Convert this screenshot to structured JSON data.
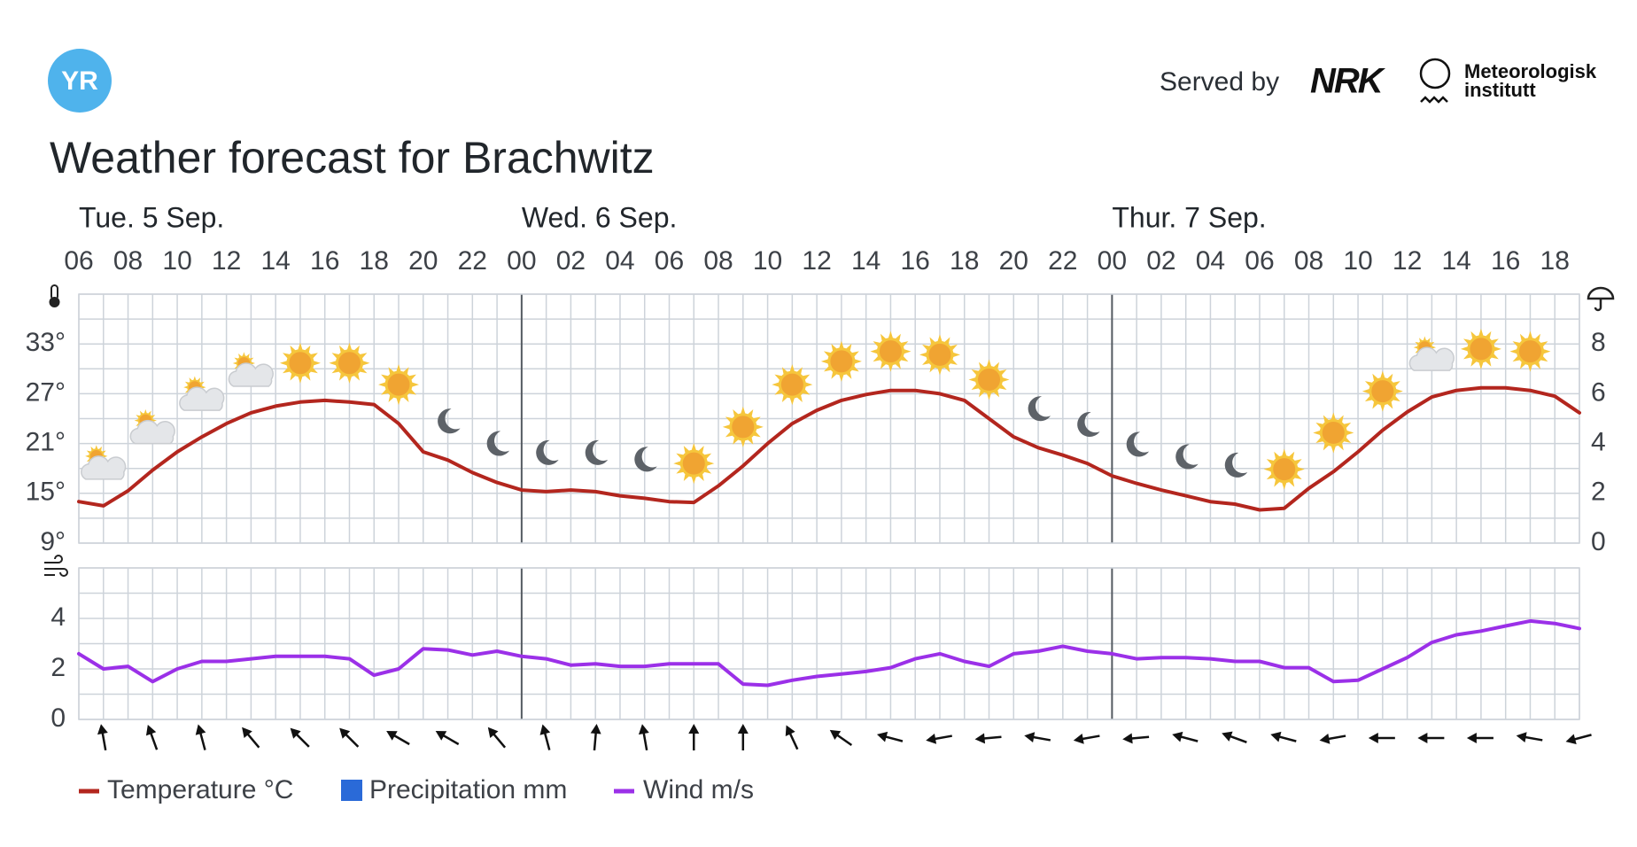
{
  "header": {
    "logo": "YR",
    "served_by": "Served by",
    "nrk": "NRK",
    "met_line1": "Meteorologisk",
    "met_line2": "institutt",
    "title": "Weather forecast for Brachwitz"
  },
  "chart_data": [
    {
      "type": "line",
      "x": [
        0,
        1,
        2,
        3,
        4,
        5,
        6,
        7,
        8,
        9,
        10,
        11,
        12,
        13,
        14,
        15,
        16,
        17,
        18,
        19,
        20,
        21,
        22,
        23,
        24,
        25,
        26,
        27,
        28,
        29,
        30,
        31,
        32,
        33,
        34,
        35,
        36,
        37,
        38,
        39,
        40,
        41,
        42,
        43,
        44,
        45,
        46,
        47,
        48,
        49,
        50,
        51,
        52,
        53,
        54,
        55,
        56,
        57,
        58,
        59,
        60,
        61
      ],
      "xlim": [
        0,
        61
      ],
      "xticks": [
        {
          "value": 0,
          "label": "06"
        },
        {
          "value": 2,
          "label": "08"
        },
        {
          "value": 4,
          "label": "10"
        },
        {
          "value": 6,
          "label": "12"
        },
        {
          "value": 8,
          "label": "14"
        },
        {
          "value": 10,
          "label": "16"
        },
        {
          "value": 12,
          "label": "18"
        },
        {
          "value": 14,
          "label": "20"
        },
        {
          "value": 16,
          "label": "22"
        },
        {
          "value": 18,
          "label": "00"
        },
        {
          "value": 20,
          "label": "02"
        },
        {
          "value": 22,
          "label": "04"
        },
        {
          "value": 24,
          "label": "06"
        },
        {
          "value": 26,
          "label": "08"
        },
        {
          "value": 28,
          "label": "10"
        },
        {
          "value": 30,
          "label": "12"
        },
        {
          "value": 32,
          "label": "14"
        },
        {
          "value": 34,
          "label": "16"
        },
        {
          "value": 36,
          "label": "18"
        },
        {
          "value": 38,
          "label": "20"
        },
        {
          "value": 40,
          "label": "22"
        },
        {
          "value": 42,
          "label": "00"
        },
        {
          "value": 44,
          "label": "02"
        },
        {
          "value": 46,
          "label": "04"
        },
        {
          "value": 48,
          "label": "06"
        },
        {
          "value": 50,
          "label": "08"
        },
        {
          "value": 52,
          "label": "10"
        },
        {
          "value": 54,
          "label": "12"
        },
        {
          "value": 56,
          "label": "14"
        },
        {
          "value": 58,
          "label": "16"
        },
        {
          "value": 60,
          "label": "18"
        }
      ],
      "days": [
        {
          "value": 0,
          "label": "Tue. 5 Sep."
        },
        {
          "value": 18,
          "label": "Wed. 6 Sep."
        },
        {
          "value": 42,
          "label": "Thur. 7 Sep."
        }
      ],
      "ylim": [
        9,
        39
      ],
      "yticks": [
        {
          "value": 9,
          "label": "9°"
        },
        {
          "value": 15,
          "label": "15°"
        },
        {
          "value": 21,
          "label": "21°"
        },
        {
          "value": 27,
          "label": "27°"
        },
        {
          "value": 33,
          "label": "33°"
        }
      ],
      "yminor": [
        12,
        18,
        24,
        30,
        36,
        39
      ],
      "y2lim": [
        0,
        10
      ],
      "y2ticks": [
        0,
        2,
        4,
        6,
        8
      ],
      "grid": true,
      "series": [
        {
          "name": "Temperature °C",
          "color": "#b3261e",
          "values": [
            14,
            13.5,
            15.3,
            17.8,
            20,
            21.8,
            23.4,
            24.7,
            25.5,
            26,
            26.2,
            26,
            25.7,
            23.4,
            20,
            19,
            17.5,
            16.3,
            15.4,
            15.2,
            15.4,
            15.2,
            14.7,
            14.4,
            14,
            13.9,
            15.9,
            18.3,
            21,
            23.4,
            25,
            26.2,
            26.9,
            27.4,
            27.4,
            27,
            26.2,
            24,
            21.8,
            20.5,
            19.6,
            18.6,
            17.1,
            16.2,
            15.4,
            14.7,
            14,
            13.7,
            13,
            13.2,
            15.6,
            17.6,
            20,
            22.6,
            24.8,
            26.6,
            27.4,
            27.7,
            27.7,
            27.4,
            26.7,
            24.7
          ]
        },
        {
          "name": "Precipitation mm",
          "color": "#2a6ad8",
          "axis": "y2",
          "kind": "bar",
          "values": [
            0,
            0,
            0,
            0,
            0,
            0,
            0,
            0,
            0,
            0,
            0,
            0,
            0,
            0,
            0,
            0,
            0,
            0,
            0,
            0,
            0,
            0,
            0,
            0,
            0,
            0,
            0,
            0,
            0,
            0,
            0,
            0,
            0,
            0,
            0,
            0,
            0,
            0,
            0,
            0,
            0,
            0,
            0,
            0,
            0,
            0,
            0,
            0,
            0,
            0,
            0,
            0,
            0,
            0,
            0,
            0,
            0,
            0,
            0,
            0,
            0,
            0
          ]
        }
      ]
    },
    {
      "type": "line",
      "x": [
        0,
        1,
        2,
        3,
        4,
        5,
        6,
        7,
        8,
        9,
        10,
        11,
        12,
        13,
        14,
        15,
        16,
        17,
        18,
        19,
        20,
        21,
        22,
        23,
        24,
        25,
        26,
        27,
        28,
        29,
        30,
        31,
        32,
        33,
        34,
        35,
        36,
        37,
        38,
        39,
        40,
        41,
        42,
        43,
        44,
        45,
        46,
        47,
        48,
        49,
        50,
        51,
        52,
        53,
        54,
        55,
        56,
        57,
        58,
        59,
        60,
        61
      ],
      "xlim": [
        0,
        61
      ],
      "separators": [
        18,
        42
      ],
      "ylim": [
        0,
        6
      ],
      "yticks": [
        0,
        2,
        4
      ],
      "yminor": [
        1,
        3,
        5,
        6
      ],
      "grid": true,
      "series": [
        {
          "name": "Wind m/s",
          "color": "#9b30e8",
          "values": [
            2.6,
            2,
            2.1,
            1.5,
            2,
            2.3,
            2.3,
            2.4,
            2.5,
            2.5,
            2.5,
            2.4,
            1.75,
            2,
            2.8,
            2.75,
            2.55,
            2.7,
            2.5,
            2.4,
            2.15,
            2.2,
            2.1,
            2.1,
            2.2,
            2.2,
            2.2,
            1.4,
            1.35,
            1.55,
            1.7,
            1.8,
            1.9,
            2.05,
            2.4,
            2.6,
            2.3,
            2.1,
            2.6,
            2.7,
            2.9,
            2.7,
            2.6,
            2.4,
            2.45,
            2.45,
            2.4,
            2.3,
            2.3,
            2.05,
            2.05,
            1.5,
            1.55,
            2,
            2.45,
            3.05,
            3.35,
            3.5,
            3.7,
            3.9,
            3.8,
            3.6
          ]
        }
      ],
      "direction_x": [
        1,
        3,
        5,
        7,
        9,
        11,
        13,
        15,
        17,
        19,
        21,
        23,
        25,
        27,
        29,
        31,
        33,
        35,
        37,
        39,
        41,
        43,
        45,
        47,
        49,
        51,
        53,
        55,
        57,
        59,
        61
      ],
      "directions": [
        350,
        340,
        345,
        320,
        315,
        315,
        300,
        300,
        320,
        345,
        5,
        350,
        0,
        0,
        335,
        305,
        285,
        260,
        265,
        280,
        260,
        265,
        285,
        290,
        285,
        260,
        270,
        270,
        270,
        280,
        255
      ]
    }
  ]
}
